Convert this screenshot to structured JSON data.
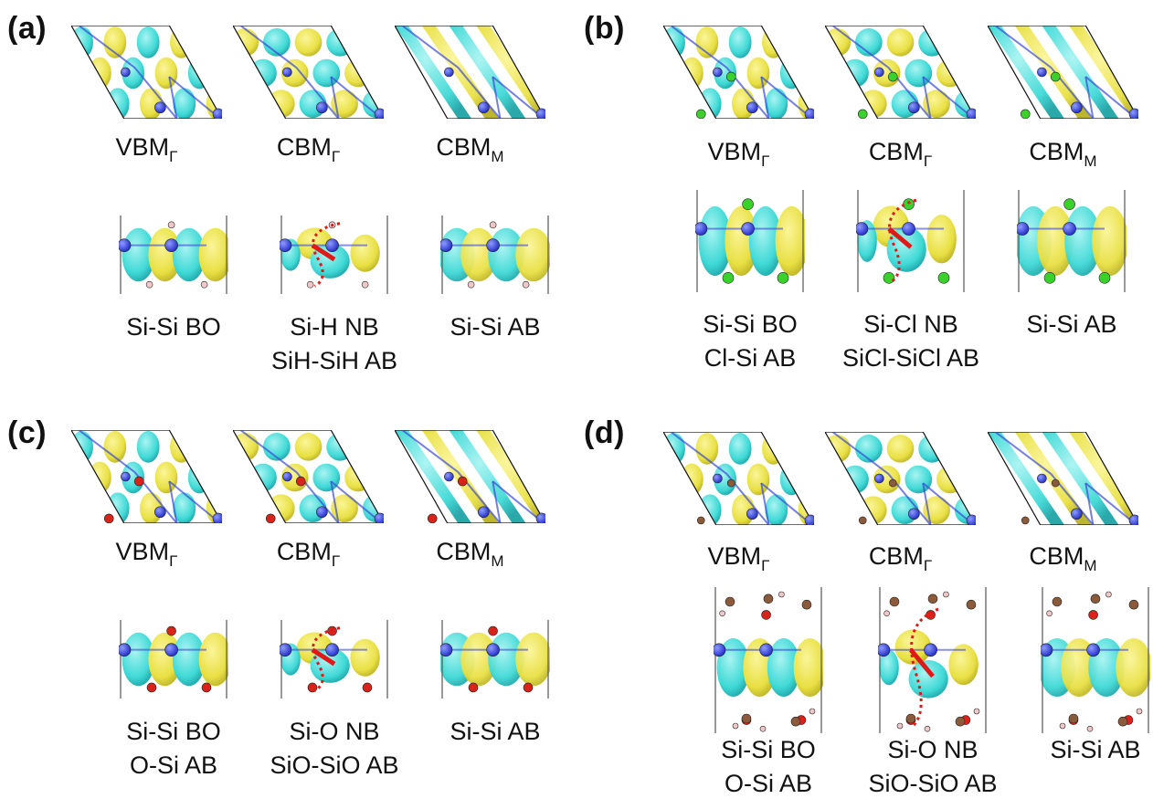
{
  "panels": [
    {
      "label": "(a)",
      "top_captions": [
        {
          "main": "VBM",
          "sub": "Γ"
        },
        {
          "main": "CBM",
          "sub": "Γ"
        },
        {
          "main": "CBM",
          "sub": "M"
        }
      ],
      "side_captions": [
        [
          "Si-Si BO"
        ],
        [
          "Si-H NB",
          "SiH-SiH AB"
        ],
        [
          "Si-Si AB"
        ]
      ]
    },
    {
      "label": "(b)",
      "top_captions": [
        {
          "main": "VBM",
          "sub": "Γ"
        },
        {
          "main": "CBM",
          "sub": "Γ"
        },
        {
          "main": "CBM",
          "sub": "M"
        }
      ],
      "side_captions": [
        [
          "Si-Si BO",
          "Cl-Si AB"
        ],
        [
          "Si-Cl NB",
          "SiCl-SiCl AB"
        ],
        [
          "Si-Si AB"
        ]
      ]
    },
    {
      "label": "(c)",
      "top_captions": [
        {
          "main": "VBM",
          "sub": "Γ"
        },
        {
          "main": "CBM",
          "sub": "Γ"
        },
        {
          "main": "CBM",
          "sub": "M"
        }
      ],
      "side_captions": [
        [
          "Si-Si BO",
          "O-Si AB"
        ],
        [
          "Si-O NB",
          "SiO-SiO AB"
        ],
        [
          "Si-Si AB"
        ]
      ]
    },
    {
      "label": "(d)",
      "top_captions": [
        {
          "main": "VBM",
          "sub": "Γ"
        },
        {
          "main": "CBM",
          "sub": "Γ"
        },
        {
          "main": "CBM",
          "sub": "M"
        }
      ],
      "side_captions": [
        [
          "Si-Si BO",
          "O-Si AB"
        ],
        [
          "Si-O NB",
          "SiO-SiO AB"
        ],
        [
          "Si-Si AB"
        ]
      ]
    }
  ],
  "colors": {
    "lobe_positive": "#e8e043",
    "lobe_negative": "#3fd9d6",
    "silicon_atom": "#2733c9",
    "hydrogen_atom": "#f0c8c8",
    "chlorine_atom": "#3bd12c",
    "oxygen_atom": "#d8231b",
    "carbon_atom": "#8a5a3a",
    "bond_marker": "#e01818"
  },
  "icons": [
    "isosurface-rhombus-cell",
    "isosurface-side-cell",
    "atom-sphere",
    "nonbonding-marker"
  ]
}
